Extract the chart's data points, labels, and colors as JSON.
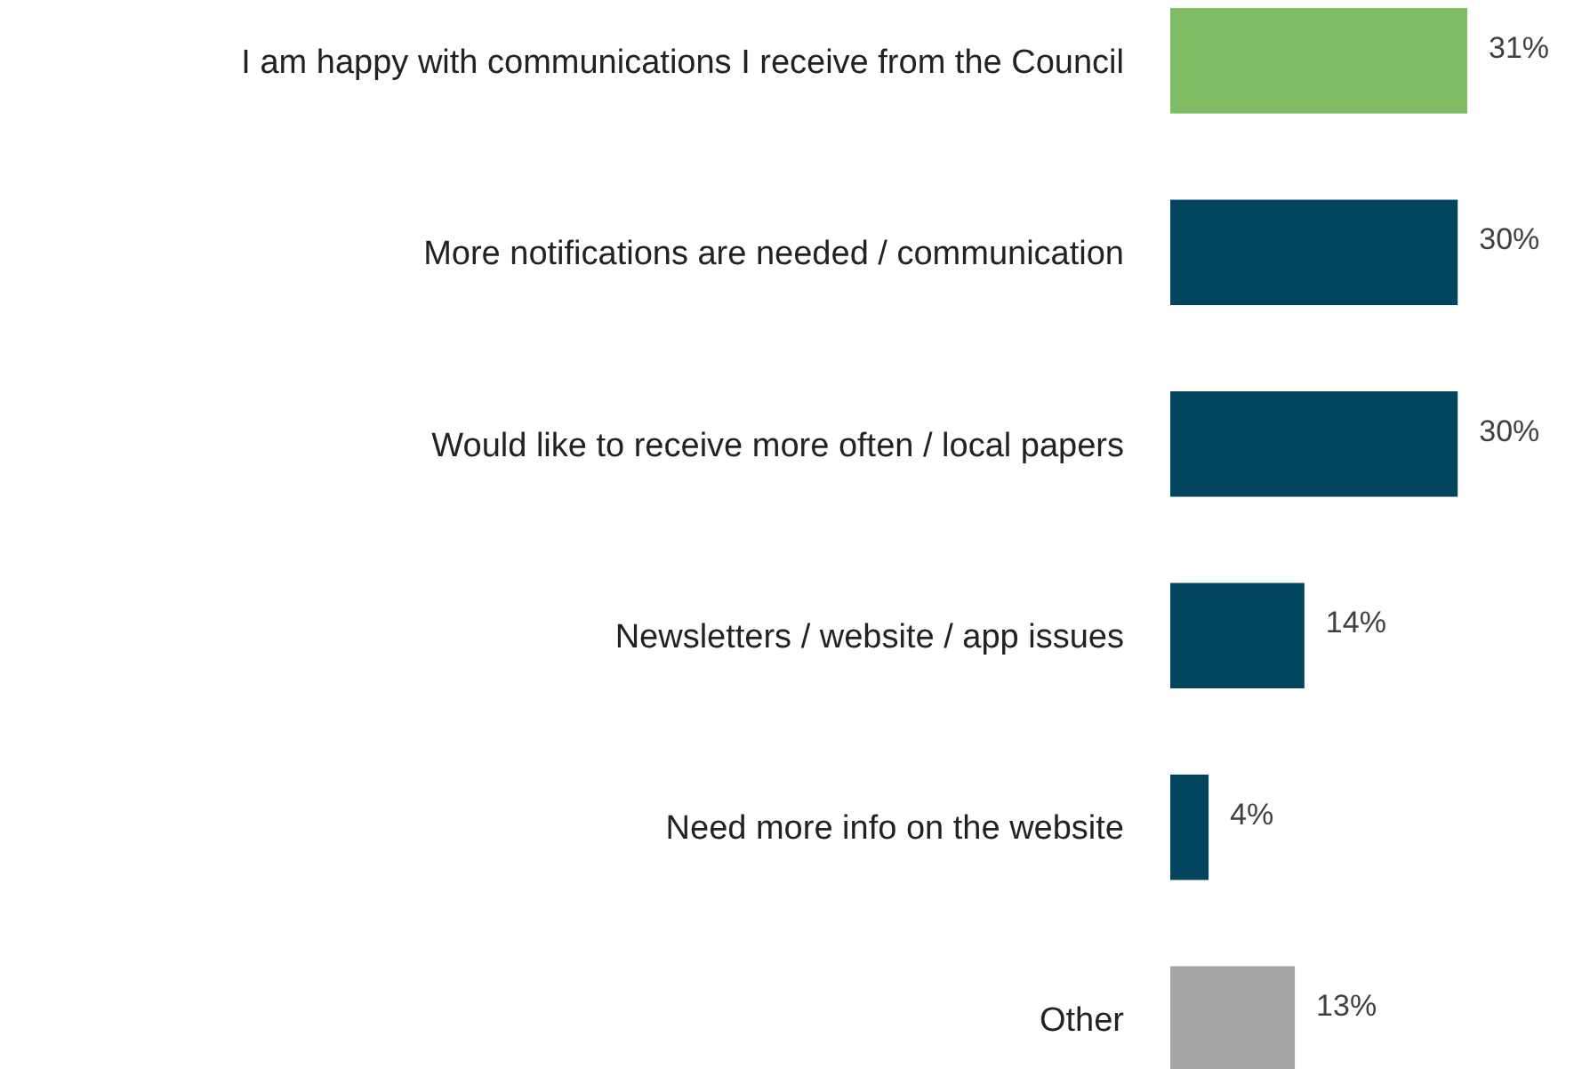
{
  "chart_data": {
    "type": "bar",
    "orientation": "horizontal",
    "categories": [
      "I am happy with communications I receive from the Council",
      "More notifications are needed / communication",
      "Would like to receive more often / local papers",
      "Newsletters / website /  app issues",
      "Need more info on the website",
      "Other"
    ],
    "values": [
      31,
      30,
      30,
      14,
      4,
      13
    ],
    "colors": [
      "#7ebd64",
      "#03445f",
      "#03445f",
      "#03445f",
      "#03445f",
      "#a6a6a6"
    ],
    "value_labels": [
      "31%",
      "30%",
      "30%",
      "14%",
      "4%",
      "13%"
    ]
  }
}
